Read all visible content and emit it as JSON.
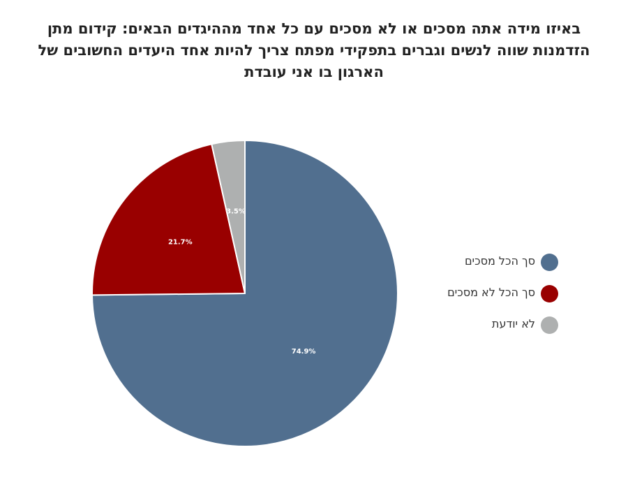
{
  "title_lines": [
    "באיזו מידה אתה מסכים או לא מסכים עם כל אחד מההיגדים הבאים: קידום מתן",
    "הזדמנות שווה לנשים וגברים בתפקידי מפתח צריך להיות אחד היעדים החשובים של",
    "הארגון בו אני עובדת"
  ],
  "chart_data": {
    "type": "pie",
    "title": "באיזו מידה אתה מסכים או לא מסכים עם כל אחד מההיגדים הבאים: קידום מתן הזדמנות שווה לנשים וגברים בתפקידי מפתח צריך להיות אחד היעדים החשובים של הארגון בו אני עובדת",
    "slices": [
      {
        "name": "סך הכל מסכים",
        "value": 74.9,
        "label": "74.9%",
        "color": "#516f8f"
      },
      {
        "name": "סך הכל לא מסכים",
        "value": 21.7,
        "label": "21.7%",
        "color": "#990000"
      },
      {
        "name": "לא יודעת",
        "value": 3.5,
        "label": "3.5%",
        "color": "#aeb0b0"
      }
    ],
    "start_angle": "12 o'clock",
    "direction": "clockwise",
    "legend": "right"
  }
}
